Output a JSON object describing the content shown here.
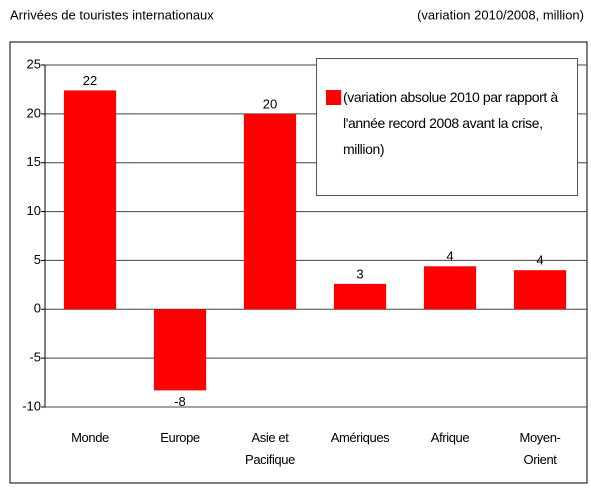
{
  "chart_data": {
    "type": "bar",
    "title": "Arrivées de touristes internationaux",
    "subtitle": "(variation 2010/2008, million)",
    "categories": [
      "Monde",
      "Europe",
      "Asie et Pacifique",
      "Amériques",
      "Afrique",
      "Moyen-Orient"
    ],
    "series": [
      {
        "name": "(variation absolue 2010 par rapport à l'année record 2008 avant la crise, million)",
        "color": "#ff0000",
        "values": [
          22.4,
          -8.3,
          20,
          2.6,
          4.4,
          4
        ],
        "value_labels": [
          "22",
          "-8",
          "20",
          "3",
          "4",
          "4"
        ]
      }
    ],
    "ylim": [
      -10,
      25
    ],
    "yticks": [
      -10,
      -5,
      0,
      5,
      10,
      15,
      20,
      25
    ],
    "grid": true,
    "legend": "top-right"
  }
}
